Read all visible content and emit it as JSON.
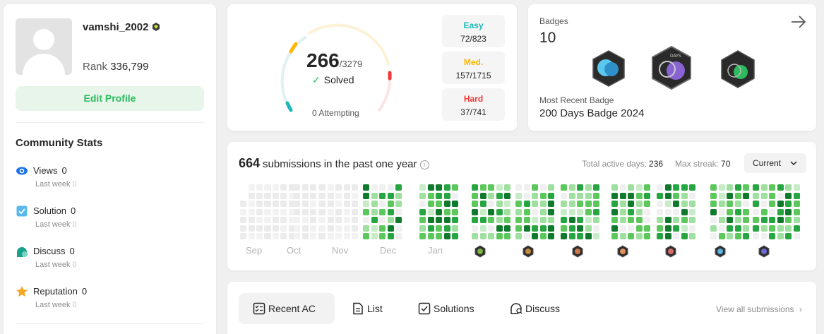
{
  "profile": {
    "username": "vamshi_2002",
    "rank_label": "Rank",
    "rank_value": "336,799",
    "edit_button": "Edit Profile"
  },
  "community": {
    "title": "Community Stats",
    "stats": [
      {
        "label": "Views",
        "value": "0",
        "sub_label": "Last week",
        "sub_value": "0",
        "icon": "eye-icon",
        "color": "#1a73e8"
      },
      {
        "label": "Solution",
        "value": "0",
        "sub_label": "Last week",
        "sub_value": "0",
        "icon": "checkbox-icon",
        "color": "#3aa3e8"
      },
      {
        "label": "Discuss",
        "value": "0",
        "sub_label": "Last week",
        "sub_value": "0",
        "icon": "chat-icon",
        "color": "#16a38a"
      },
      {
        "label": "Reputation",
        "value": "0",
        "sub_label": "Last week",
        "sub_value": "0",
        "icon": "star-icon",
        "color": "#f5a623"
      }
    ]
  },
  "solved": {
    "count": "266",
    "total": "/3279",
    "label": "Solved",
    "attempting": "0 Attempting",
    "difficulties": [
      {
        "name": "Easy",
        "value": "72/823",
        "color": "#1cb8b8"
      },
      {
        "name": "Med.",
        "value": "157/1715",
        "color": "#ffb700"
      },
      {
        "name": "Hard",
        "value": "37/741",
        "color": "#f63737"
      }
    ]
  },
  "badges": {
    "label": "Badges",
    "count": "10",
    "recent_label": "Most Recent Badge",
    "recent_name": "200 Days Badge 2024"
  },
  "heatmap": {
    "count": "664",
    "title": "submissions in the past one year",
    "active_label": "Total active days:",
    "active_value": "236",
    "streak_label": "Max streak:",
    "streak_value": "70",
    "select_value": "Current",
    "months": [
      "Sep",
      "Oct",
      "Nov",
      "Dec",
      "Jan"
    ]
  },
  "tabs": {
    "items": [
      {
        "label": "Recent AC",
        "icon": "recent-ac-icon"
      },
      {
        "label": "List",
        "icon": "list-icon"
      },
      {
        "label": "Solutions",
        "icon": "solutions-icon"
      },
      {
        "label": "Discuss",
        "icon": "discuss-icon"
      }
    ],
    "view_all": "View all submissions"
  }
}
